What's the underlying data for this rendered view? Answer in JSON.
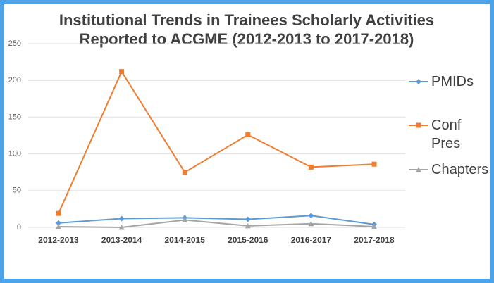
{
  "chart_data": {
    "type": "line",
    "title": [
      "Institutional Trends in Trainees Scholarly Activities",
      "Reported to ACGME (2012-2013 to 2017-2018)"
    ],
    "categories": [
      "2012-2013",
      "2013-2014",
      "2014-2015",
      "2015-2016",
      "2016-2017",
      "2017-2018"
    ],
    "series": [
      {
        "name": "PMIDs",
        "color": "#5b9bd5",
        "marker": "diamond",
        "values": [
          6,
          12,
          13,
          11,
          16,
          4
        ]
      },
      {
        "name": "Conf Pres",
        "color": "#ed7d31",
        "marker": "square",
        "values": [
          19,
          212,
          75,
          126,
          82,
          86
        ]
      },
      {
        "name": "Chapters",
        "color": "#a5a5a5",
        "marker": "triangle",
        "values": [
          1,
          0,
          10,
          2,
          5,
          1
        ]
      }
    ],
    "ylim": [
      0,
      250
    ],
    "yticks": [
      0,
      50,
      100,
      150,
      200,
      250
    ],
    "grid": true,
    "legend": "right"
  }
}
